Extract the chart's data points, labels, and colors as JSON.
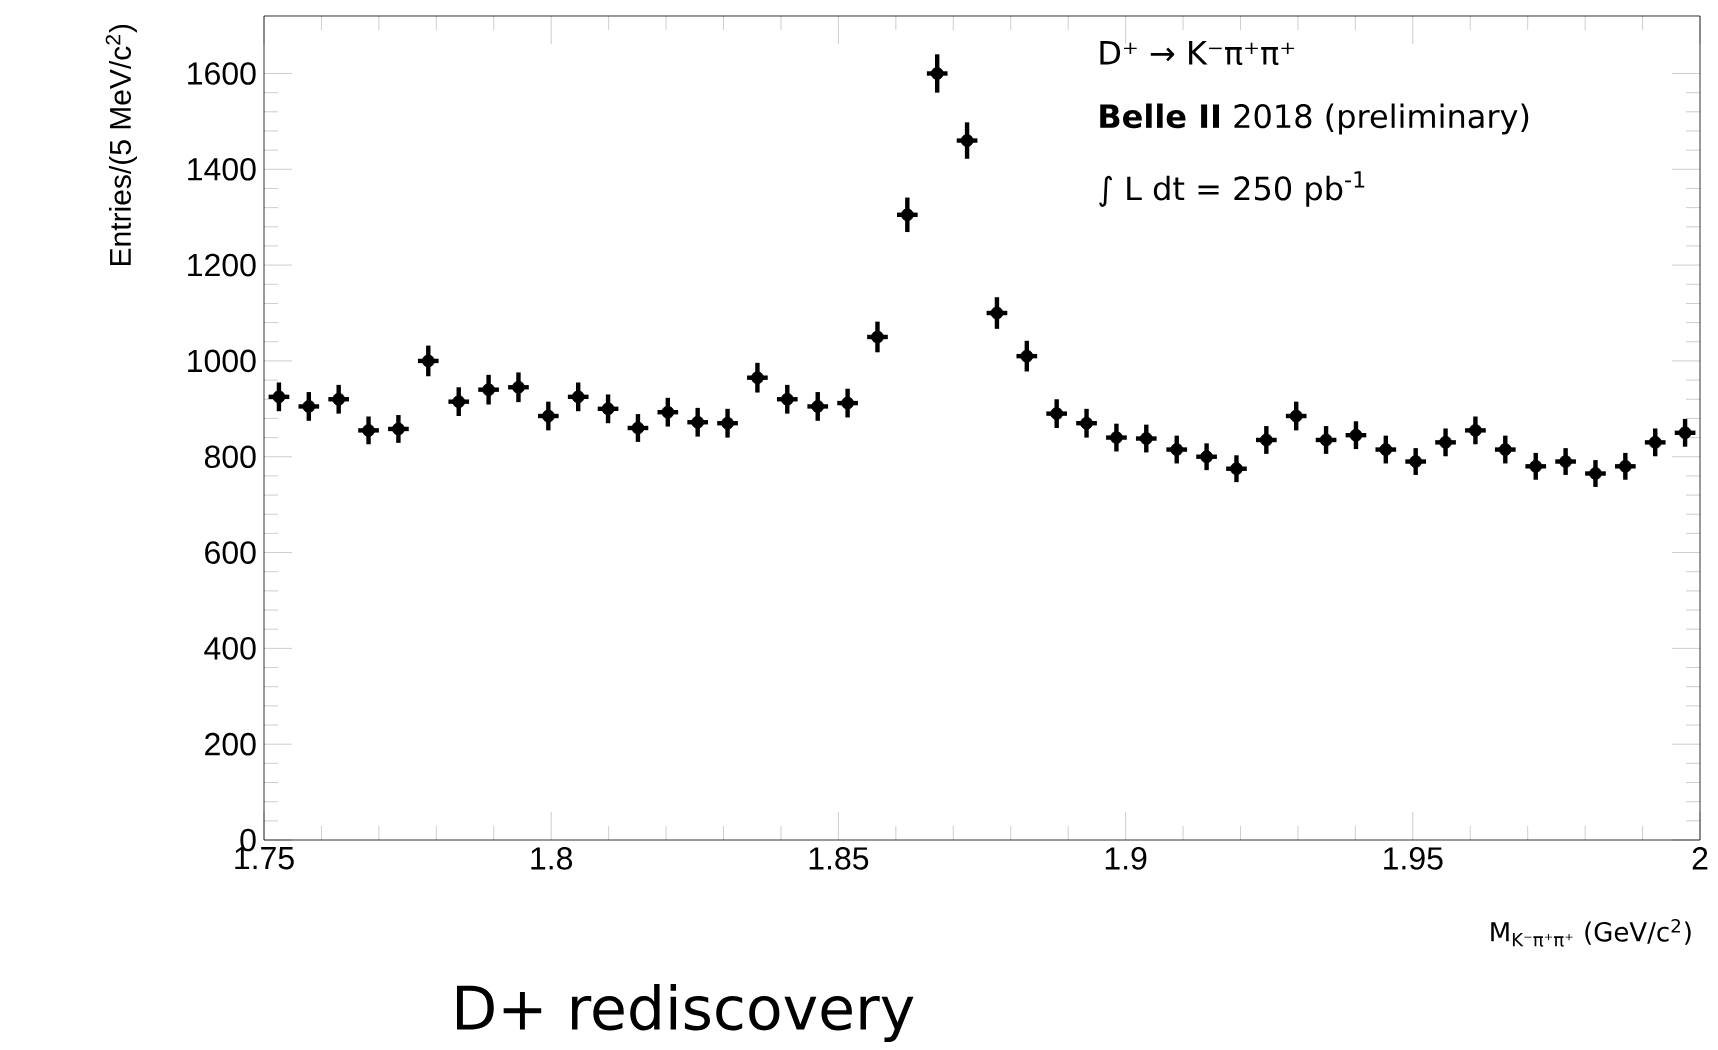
{
  "chart_data": {
    "type": "scatter",
    "xlabel": "M$_{K⁻π⁺π⁺}$ (GeV/c$^{2}$)",
    "ylabel": "Entries/(5 MeV/c$^{2}$)",
    "annotations": [
      "D⁺ → K⁻π⁺π⁺",
      "**Belle II**  2018 (preliminary)",
      "∫ L dt = 250 pb$^{-1}$",
      "D+ rediscovery"
    ],
    "x": [
      1.7526,
      1.7578,
      1.763,
      1.7682,
      1.7734,
      1.7786,
      1.7839,
      1.7891,
      1.7943,
      1.7995,
      1.8047,
      1.8099,
      1.8151,
      1.8203,
      1.8255,
      1.8307,
      1.8359,
      1.8411,
      1.8464,
      1.8516,
      1.8568,
      1.862,
      1.8672,
      1.8724,
      1.8776,
      1.8828,
      1.888,
      1.8932,
      1.8984,
      1.9036,
      1.9089,
      1.9141,
      1.9193,
      1.9245,
      1.9297,
      1.9349,
      1.9401,
      1.9453,
      1.9505,
      1.9557,
      1.9609,
      1.9661,
      1.9714,
      1.9766,
      1.9818,
      1.987,
      1.9922,
      1.9974
    ],
    "values": [
      925,
      905,
      920,
      855,
      858,
      1000,
      915,
      940,
      945,
      885,
      925,
      900,
      860,
      893,
      872,
      870,
      965,
      920,
      905,
      912,
      1050,
      1305,
      1600,
      1460,
      1100,
      1010,
      890,
      870,
      840,
      838,
      815,
      800,
      775,
      835,
      885,
      835,
      845,
      815,
      790,
      830,
      855,
      815,
      780,
      790,
      765,
      780,
      830,
      850
    ],
    "errors": [
      30,
      30,
      30,
      29,
      29,
      32,
      30,
      31,
      31,
      30,
      30,
      30,
      29,
      30,
      30,
      30,
      31,
      30,
      30,
      30,
      32,
      36,
      40,
      38,
      33,
      32,
      30,
      30,
      29,
      29,
      29,
      28,
      28,
      29,
      30,
      29,
      29,
      29,
      28,
      29,
      29,
      29,
      28,
      28,
      28,
      28,
      29,
      29
    ],
    "xerrors": [
      0.0018,
      0.0018,
      0.0018,
      0.0018,
      0.0018,
      0.0018,
      0.0018,
      0.0018,
      0.0018,
      0.0018,
      0.0018,
      0.0018,
      0.0018,
      0.0018,
      0.0018,
      0.0018,
      0.0018,
      0.0018,
      0.0018,
      0.0018,
      0.0018,
      0.0018,
      0.0018,
      0.0018,
      0.0018,
      0.0018,
      0.0018,
      0.0018,
      0.0018,
      0.0018,
      0.0018,
      0.0018,
      0.0018,
      0.0018,
      0.0018,
      0.0018,
      0.0018,
      0.0018,
      0.0018,
      0.0018,
      0.0018,
      0.0018,
      0.0018,
      0.0018,
      0.0018,
      0.0018,
      0.0018,
      0.0018
    ],
    "color": "#000000",
    "xlim": [
      1.75,
      2
    ],
    "ylim": [
      0,
      1720
    ],
    "xticks": [
      1.75,
      1.8,
      1.85,
      1.9,
      1.95,
      2
    ],
    "yticks": [
      0,
      200,
      400,
      600,
      800,
      1000,
      1200,
      1400,
      1600
    ]
  }
}
